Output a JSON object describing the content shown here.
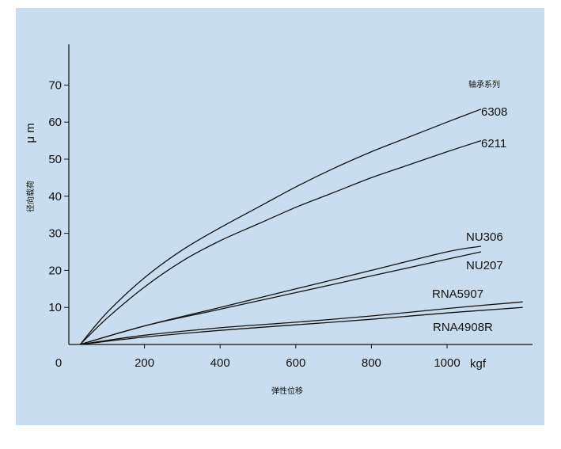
{
  "chart_data": {
    "type": "line",
    "xlabel": "弹性位移",
    "ylabel": "径向载荷",
    "ylabel_unit": "μ m",
    "x_unit_label": "kgf",
    "legend_title": "轴承系列",
    "xlim": [
      0,
      1230
    ],
    "ylim": [
      0,
      80
    ],
    "x_ticks": [
      {
        "value": 0,
        "label": "0"
      },
      {
        "value": 200,
        "label": "200"
      },
      {
        "value": 400,
        "label": "400"
      },
      {
        "value": 600,
        "label": "600"
      },
      {
        "value": 800,
        "label": "800"
      },
      {
        "value": 1000,
        "label": "1000"
      }
    ],
    "y_ticks": [
      {
        "value": 10,
        "label": "10"
      },
      {
        "value": 20,
        "label": "20"
      },
      {
        "value": 30,
        "label": "30"
      },
      {
        "value": 40,
        "label": "40"
      },
      {
        "value": 50,
        "label": "50"
      },
      {
        "value": 60,
        "label": "60"
      },
      {
        "value": 70,
        "label": "70"
      }
    ],
    "series": [
      {
        "name": "6308",
        "points": [
          [
            30,
            0
          ],
          [
            100,
            8.5
          ],
          [
            200,
            18
          ],
          [
            300,
            25.5
          ],
          [
            400,
            31.5
          ],
          [
            500,
            37
          ],
          [
            600,
            42.5
          ],
          [
            700,
            47.5
          ],
          [
            800,
            52
          ],
          [
            900,
            56
          ],
          [
            1000,
            60
          ],
          [
            1090,
            63.5
          ]
        ]
      },
      {
        "name": "6211",
        "points": [
          [
            30,
            0
          ],
          [
            100,
            7
          ],
          [
            200,
            15.5
          ],
          [
            300,
            22.5
          ],
          [
            400,
            28
          ],
          [
            500,
            32.5
          ],
          [
            600,
            37
          ],
          [
            700,
            41
          ],
          [
            800,
            45
          ],
          [
            900,
            48.5
          ],
          [
            1000,
            52
          ],
          [
            1090,
            55
          ]
        ]
      },
      {
        "name": "NU306",
        "points": [
          [
            30,
            0
          ],
          [
            200,
            5
          ],
          [
            400,
            10
          ],
          [
            600,
            15
          ],
          [
            800,
            20
          ],
          [
            1000,
            25
          ],
          [
            1090,
            26.5
          ]
        ]
      },
      {
        "name": "NU207",
        "points": [
          [
            30,
            0
          ],
          [
            200,
            5
          ],
          [
            400,
            9.5
          ],
          [
            600,
            14
          ],
          [
            800,
            18.5
          ],
          [
            1000,
            23
          ],
          [
            1090,
            25
          ]
        ]
      },
      {
        "name": "RNA5907",
        "points": [
          [
            30,
            0
          ],
          [
            200,
            2.5
          ],
          [
            400,
            4.5
          ],
          [
            600,
            6
          ],
          [
            800,
            7.7
          ],
          [
            1000,
            9.7
          ],
          [
            1200,
            11.5
          ]
        ]
      },
      {
        "name": "RNA4908R",
        "points": [
          [
            30,
            0
          ],
          [
            200,
            2
          ],
          [
            400,
            3.8
          ],
          [
            600,
            5.3
          ],
          [
            800,
            6.8
          ],
          [
            1000,
            8.5
          ],
          [
            1200,
            10
          ]
        ]
      }
    ]
  },
  "label_positions_note": ""
}
